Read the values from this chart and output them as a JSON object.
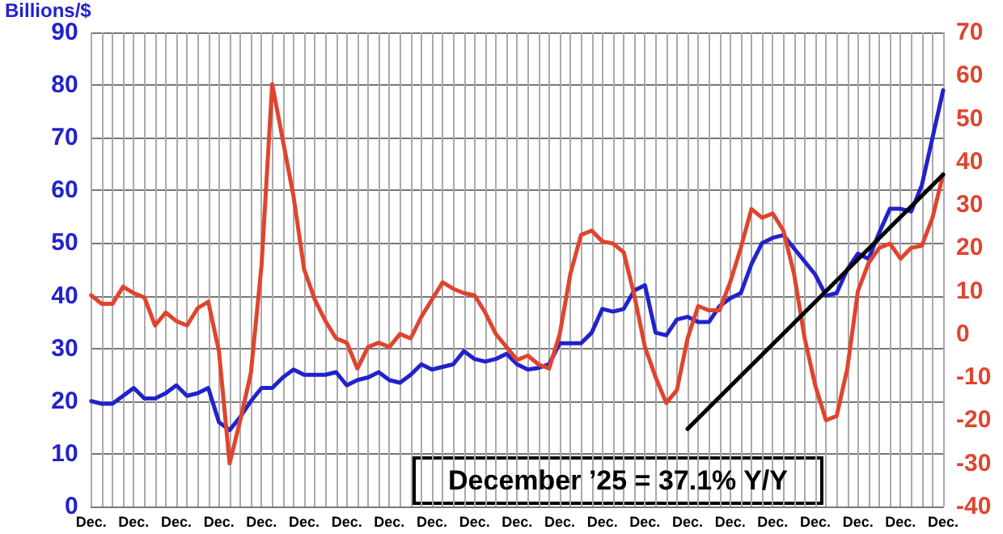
{
  "chart_data": {
    "type": "line",
    "ylabel": "Billions/$",
    "categories": [
      "Dec.",
      null,
      null,
      null,
      "Dec.",
      null,
      null,
      null,
      "Dec.",
      null,
      null,
      null,
      "Dec.",
      null,
      null,
      null,
      "Dec.",
      null,
      null,
      null,
      "Dec.",
      null,
      null,
      null,
      "Dec.",
      null,
      null,
      null,
      "Dec.",
      null,
      null,
      null,
      "Dec.",
      null,
      null,
      null,
      "Dec.",
      null,
      null,
      null,
      "Dec.",
      null,
      null,
      null,
      "Dec.",
      null,
      null,
      null,
      "Dec.",
      null,
      null,
      null,
      "Dec.",
      null,
      null,
      null,
      "Dec.",
      null,
      null,
      null,
      "Dec.",
      null,
      null,
      null,
      "Dec.",
      null,
      null,
      null,
      "Dec.",
      null,
      null,
      null,
      "Dec.",
      null,
      null,
      null,
      "Dec.",
      null,
      null,
      null,
      "Dec."
    ],
    "series": [
      {
        "color": "#2222cc",
        "values": [
          20,
          19.5,
          19.5,
          21,
          22.5,
          20.5,
          20.5,
          21.5,
          23,
          21,
          21.5,
          22.5,
          16,
          14.5,
          17,
          20,
          22.5,
          22.5,
          24.5,
          26,
          25,
          25,
          25,
          25.5,
          23,
          24,
          24.5,
          25.5,
          24,
          23.5,
          25,
          27,
          26,
          26.5,
          27,
          29.5,
          28,
          27.5,
          28,
          29,
          27,
          26,
          26.3,
          27,
          31,
          31,
          31,
          33,
          37.5,
          37,
          37.5,
          41,
          42,
          33,
          32.5,
          35.5,
          36,
          35,
          35,
          38,
          39.5,
          40.5,
          46,
          50,
          51,
          51.5,
          49,
          46.5,
          44,
          40,
          40.5,
          45,
          48,
          47,
          52,
          56.5,
          56.5,
          56,
          61,
          70,
          79
        ]
      },
      {
        "color": "#e0442e",
        "axis": "y2",
        "values": [
          9,
          7,
          7,
          11,
          9.5,
          8.5,
          2,
          5,
          3,
          2,
          6,
          7.5,
          -4,
          -30,
          -20,
          -9,
          16,
          58,
          45,
          32,
          15,
          8,
          3,
          -1,
          -2,
          -8,
          -3,
          -2,
          -3,
          0,
          -1,
          4,
          8,
          12,
          10.5,
          9.5,
          9,
          5,
          0,
          -3,
          -6,
          -5,
          -7,
          -8,
          0,
          14,
          23,
          24,
          21.5,
          21,
          19,
          9,
          -3,
          -10,
          -16,
          -13,
          -1,
          6.5,
          5.5,
          5.5,
          12,
          20,
          29,
          27,
          28,
          24,
          14,
          -1,
          -12,
          -20,
          -19,
          -8,
          10,
          16.5,
          20,
          21,
          17.5,
          20,
          20.5,
          27,
          37.1
        ]
      },
      {
        "color": "#000000",
        "axis": "y2",
        "values": [
          null,
          null,
          null,
          null,
          null,
          null,
          null,
          null,
          null,
          null,
          null,
          null,
          null,
          null,
          null,
          null,
          null,
          null,
          null,
          null,
          null,
          null,
          null,
          null,
          null,
          null,
          null,
          null,
          null,
          null,
          null,
          null,
          null,
          null,
          null,
          null,
          null,
          null,
          null,
          null,
          null,
          null,
          null,
          null,
          null,
          null,
          null,
          null,
          null,
          null,
          null,
          null,
          null,
          null,
          null,
          null,
          -22,
          null,
          null,
          null,
          null,
          null,
          null,
          null,
          null,
          null,
          null,
          null,
          null,
          null,
          null,
          null,
          null,
          null,
          null,
          null,
          null,
          null,
          null,
          null,
          37
        ]
      }
    ],
    "ylim": [
      0,
      90
    ],
    "yticks": [
      0,
      10,
      20,
      30,
      40,
      50,
      60,
      70,
      80,
      90
    ],
    "y2lim": [
      -40,
      70
    ],
    "y2ticks": [
      -40,
      -30,
      -20,
      -10,
      0,
      10,
      20,
      30,
      40,
      50,
      60,
      70
    ],
    "grid": true,
    "marker": "none",
    "line_style": "solid",
    "annotations": [
      "December ’25 = 37.1% Y/Y"
    ]
  }
}
